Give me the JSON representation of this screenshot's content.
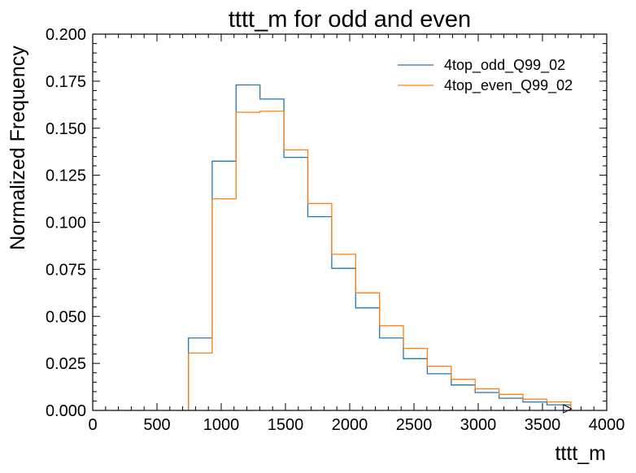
{
  "chart_data": {
    "type": "histogram-step",
    "title": "tttt_m for odd and even",
    "xlabel": "tttt_m",
    "ylabel": "Normalized Frequency",
    "xlim": [
      0,
      4000
    ],
    "ylim": [
      0,
      0.2
    ],
    "xticks": [
      "0",
      "500",
      "1000",
      "1500",
      "2000",
      "2500",
      "3000",
      "3500",
      "4000"
    ],
    "yticks": [
      "0.000",
      "0.025",
      "0.050",
      "0.075",
      "0.100",
      "0.125",
      "0.150",
      "0.175",
      "0.200"
    ],
    "bin_edges": [
      745,
      930,
      1116,
      1302,
      1488,
      1674,
      1860,
      2046,
      2232,
      2418,
      2604,
      2790,
      2976,
      3162,
      3348,
      3534,
      3720
    ],
    "legend_position": "top-right",
    "series": [
      {
        "name": "4top_odd_Q99_02",
        "color": "#1f77b4",
        "values": [
          0.0385,
          0.1325,
          0.173,
          0.1655,
          0.1345,
          0.103,
          0.0755,
          0.0545,
          0.0385,
          0.0275,
          0.0195,
          0.0135,
          0.0095,
          0.0065,
          0.0045,
          0.003
        ]
      },
      {
        "name": "4top_even_Q99_02",
        "color": "#ff7f0e",
        "values": [
          0.0305,
          0.1125,
          0.1585,
          0.159,
          0.1385,
          0.11,
          0.083,
          0.0625,
          0.045,
          0.033,
          0.0235,
          0.0165,
          0.0115,
          0.0085,
          0.006,
          0.0045
        ]
      }
    ]
  }
}
